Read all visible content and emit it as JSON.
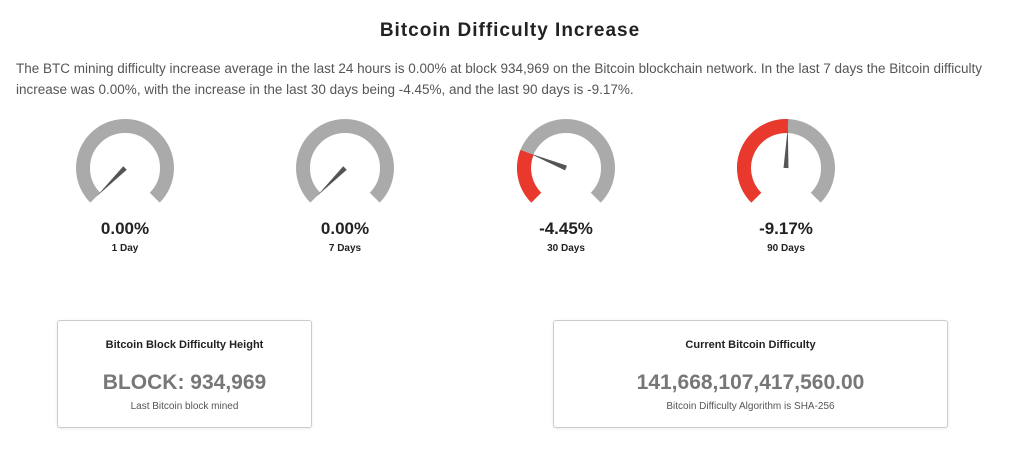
{
  "header": {
    "title": "Bitcoin Difficulty Increase"
  },
  "intro": "The BTC mining difficulty increase average in the last 24 hours is 0.00% at block 934,969 on the Bitcoin blockchain network. In the last 7 days the Bitcoin difficulty increase was 0.00%, with the increase in the last 30 days being -4.45%, and the last 90 days is -9.17%.",
  "gauges": {
    "range": [
      0,
      -18
    ],
    "items": [
      {
        "value": 0,
        "label": "0.00%",
        "period": "1 Day"
      },
      {
        "value": 0,
        "label": "0.00%",
        "period": "7 Days"
      },
      {
        "value": -4.45,
        "label": "-4.45%",
        "period": "30 Days"
      },
      {
        "value": -9.17,
        "label": "-9.17%",
        "period": "90 Days"
      }
    ]
  },
  "cards": [
    {
      "title": "Bitcoin Block Difficulty Height",
      "value": "BLOCK: 934,969",
      "caption": "Last Bitcoin block mined"
    },
    {
      "title": "Current Bitcoin Difficulty",
      "value": "141,668,107,417,560.00",
      "caption": "Bitcoin Difficulty Algorithm is SHA-256"
    }
  ]
}
